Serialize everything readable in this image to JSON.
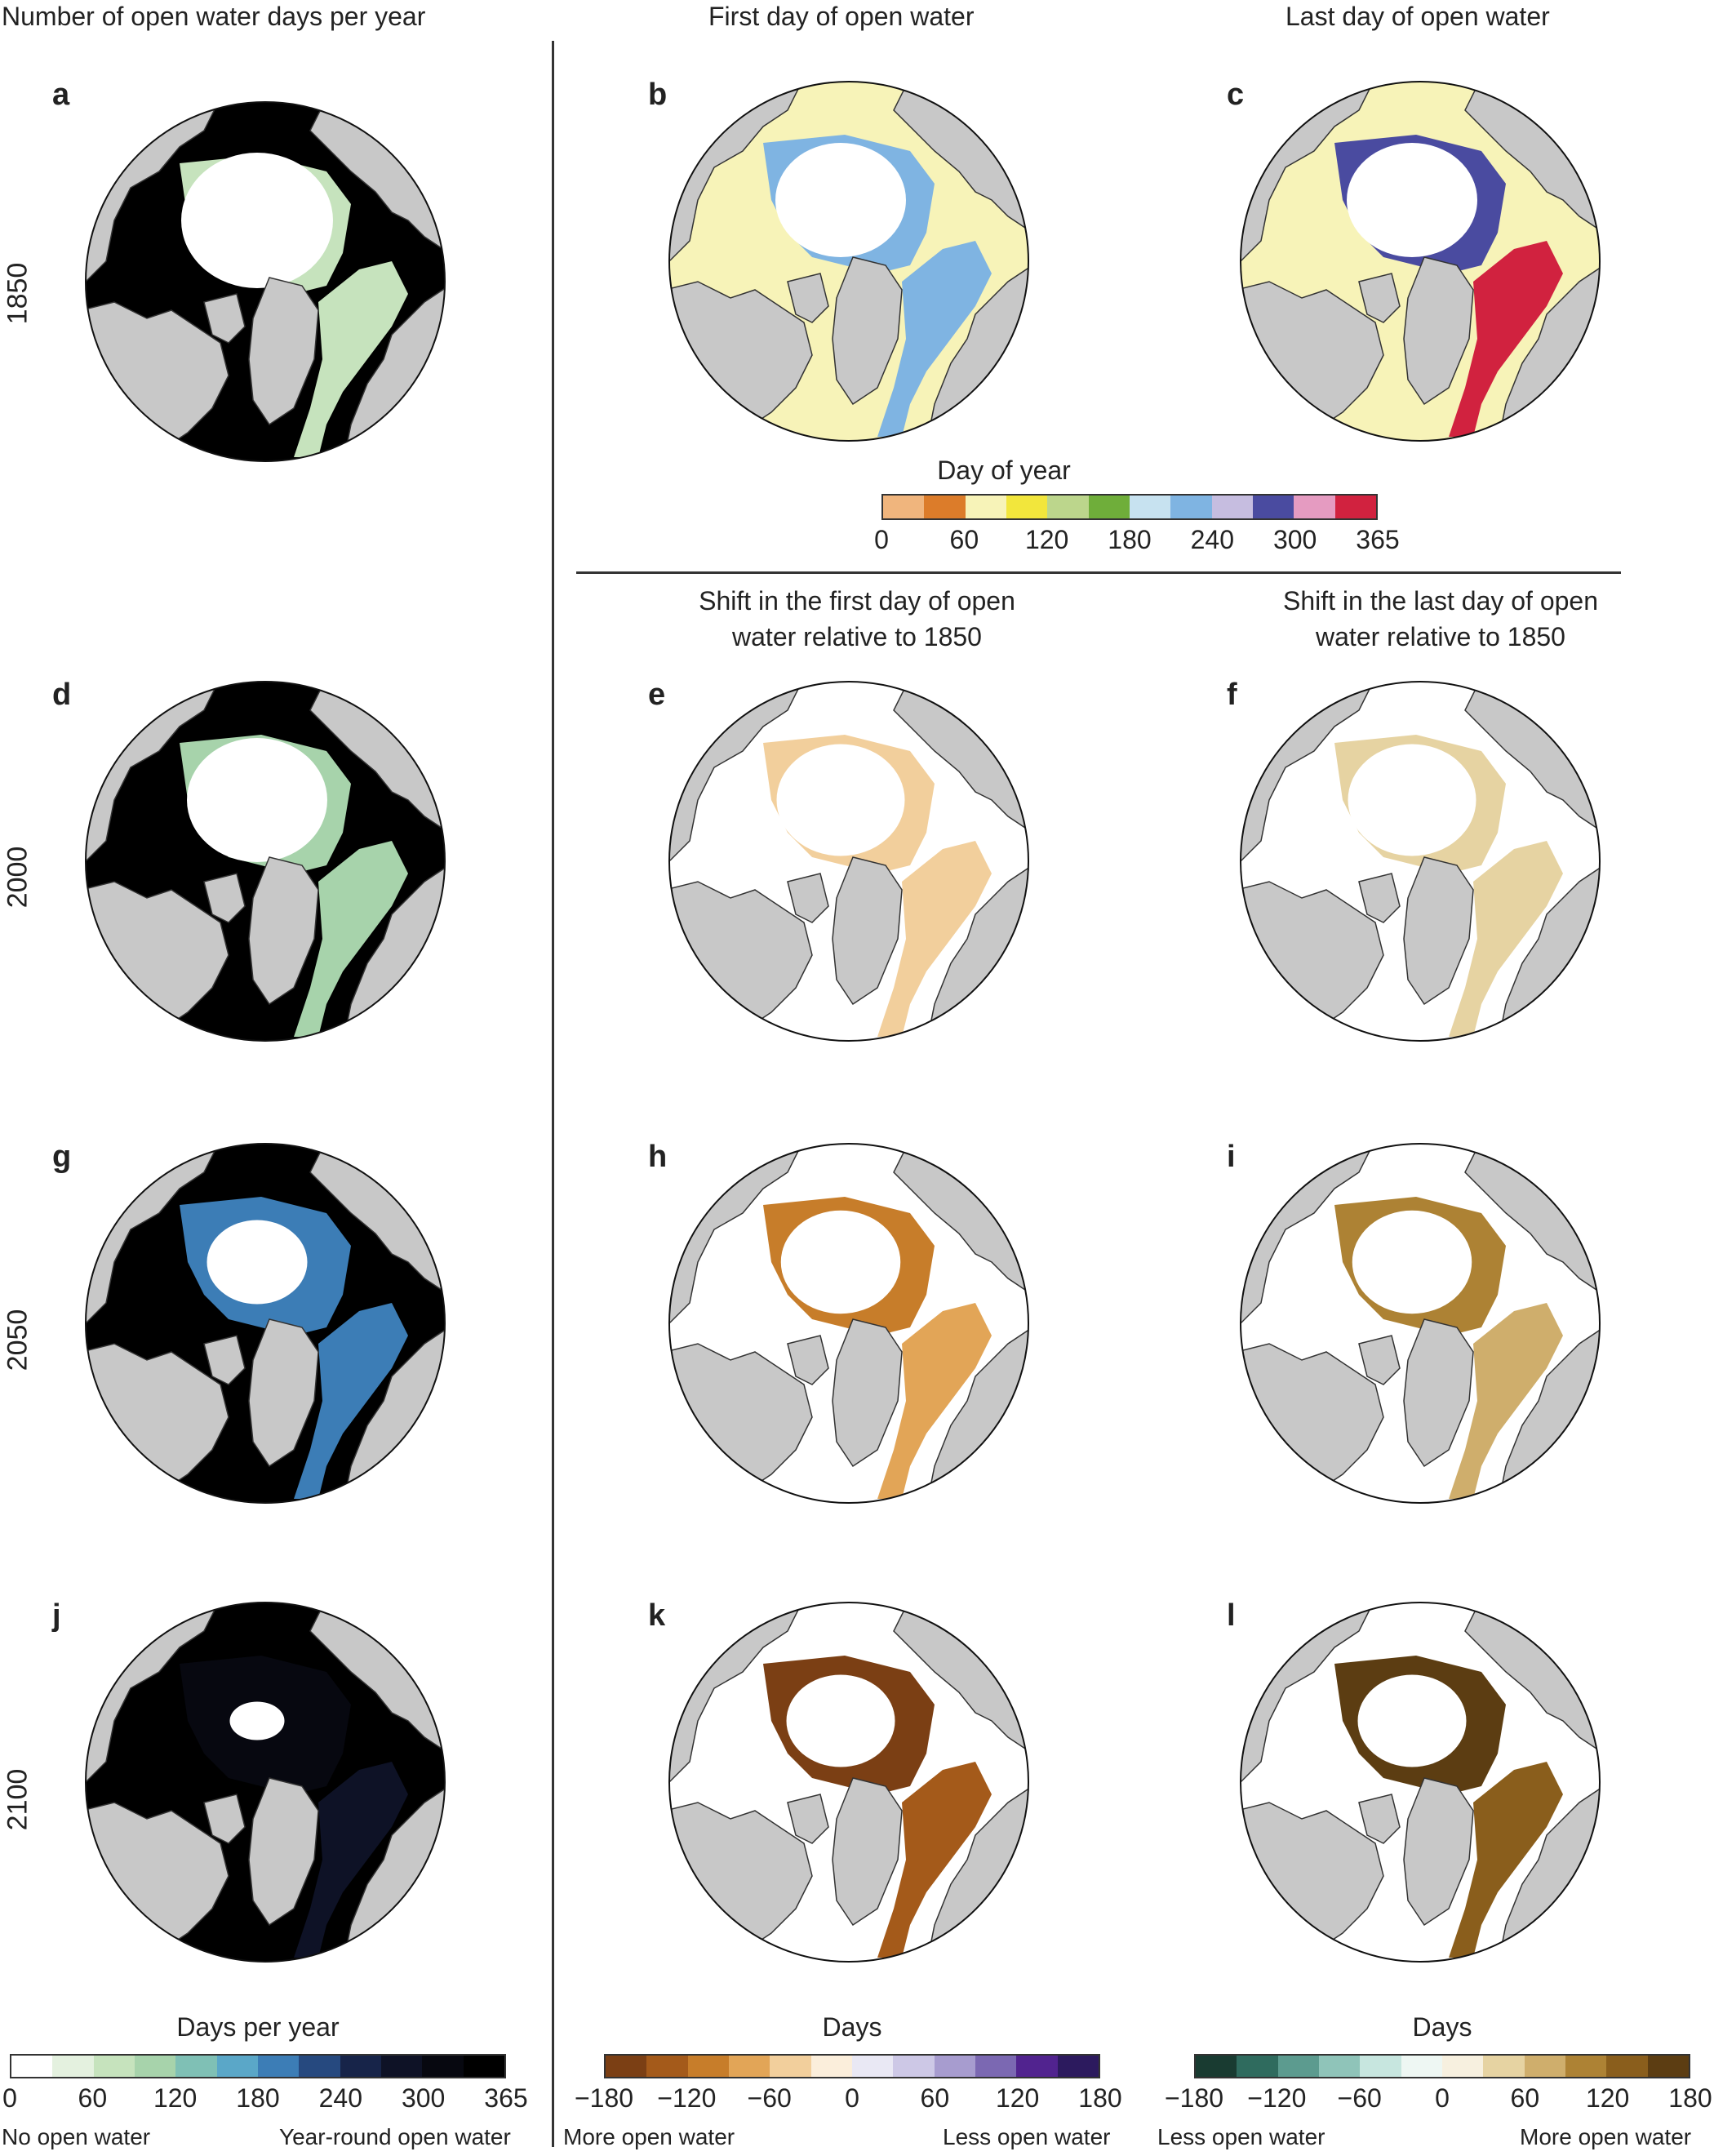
{
  "columns": {
    "col1_title": "Number of open water days per year",
    "col2_title": "First day of open water",
    "col3_title": "Last day of open water",
    "col2_shift_title_l1": "Shift in the first day of open",
    "col2_shift_title_l2": "water relative to 1850",
    "col3_shift_title_l1": "Shift in the last day of open",
    "col3_shift_title_l2": "water relative to 1850"
  },
  "years": [
    "1850",
    "2000",
    "2050",
    "2100"
  ],
  "panels": [
    {
      "id": "a",
      "year": "1850",
      "kind": "days",
      "level": 0.1
    },
    {
      "id": "b",
      "year": "1850",
      "kind": "first",
      "level": 0.0
    },
    {
      "id": "c",
      "year": "1850",
      "kind": "last",
      "level": 0.0
    },
    {
      "id": "d",
      "year": "2000",
      "kind": "days",
      "level": 0.2
    },
    {
      "id": "e",
      "year": "2000",
      "kind": "shift_first",
      "level": 0.1
    },
    {
      "id": "f",
      "year": "2000",
      "kind": "shift_last",
      "level": 0.1
    },
    {
      "id": "g",
      "year": "2050",
      "kind": "days",
      "level": 0.55
    },
    {
      "id": "h",
      "year": "2050",
      "kind": "shift_first",
      "level": 0.45
    },
    {
      "id": "i",
      "year": "2050",
      "kind": "shift_last",
      "level": 0.45
    },
    {
      "id": "j",
      "year": "2100",
      "kind": "days",
      "level": 0.95
    },
    {
      "id": "k",
      "year": "2100",
      "kind": "shift_first",
      "level": 0.9
    },
    {
      "id": "l",
      "year": "2100",
      "kind": "shift_last",
      "level": 0.9
    }
  ],
  "colorbars": {
    "day_of_year": {
      "title": "Day of year",
      "ticks": [
        "0",
        "60",
        "120",
        "180",
        "240",
        "300",
        "365"
      ],
      "colors": [
        "#f0b57d",
        "#dc7c2a",
        "#f7f3b8",
        "#f2e63c",
        "#bcd68c",
        "#6fae3a",
        "#c7e2f0",
        "#7fb4e2",
        "#c6bde0",
        "#4a4ba0",
        "#e59bc1",
        "#d1223f"
      ]
    },
    "days_per_year": {
      "title": "Days per year",
      "ticks": [
        "0",
        "60",
        "120",
        "180",
        "240",
        "300",
        "365"
      ],
      "colors": [
        "#ffffff",
        "#e4f1df",
        "#c6e3bd",
        "#a7d3ab",
        "#7fc0b5",
        "#5aa7c8",
        "#3c7db6",
        "#26497f",
        "#172449",
        "#0e1226",
        "#070810",
        "#000000"
      ],
      "left_label": "No open water",
      "right_label": "Year-round open water"
    },
    "shift_first": {
      "title": "Days",
      "ticks": [
        "−180",
        "−120",
        "−60",
        "0",
        "60",
        "120",
        "180"
      ],
      "colors": [
        "#7b3f14",
        "#a45a1a",
        "#c77d2a",
        "#e2a557",
        "#f2cf9c",
        "#fbeedb",
        "#e9e8f4",
        "#cdc8e6",
        "#a79ccf",
        "#7b68b2",
        "#51238f",
        "#2c1a5e"
      ],
      "left_label": "More open water",
      "right_label": "Less open water"
    },
    "shift_last": {
      "title": "Days",
      "ticks": [
        "−180",
        "−120",
        "−60",
        "0",
        "60",
        "120",
        "180"
      ],
      "colors": [
        "#193b31",
        "#2f6b5e",
        "#5c9b8f",
        "#8fc4b9",
        "#c7e6df",
        "#eef7f3",
        "#f7f0df",
        "#e6d3a2",
        "#cfae6c",
        "#ad8234",
        "#8a5e1c",
        "#5c3d12"
      ],
      "left_label": "Less open water",
      "right_label": "More open water"
    }
  },
  "palette": {
    "land": "#c8c8c8",
    "land_edge": "#333333",
    "ice": "#ffffff"
  }
}
